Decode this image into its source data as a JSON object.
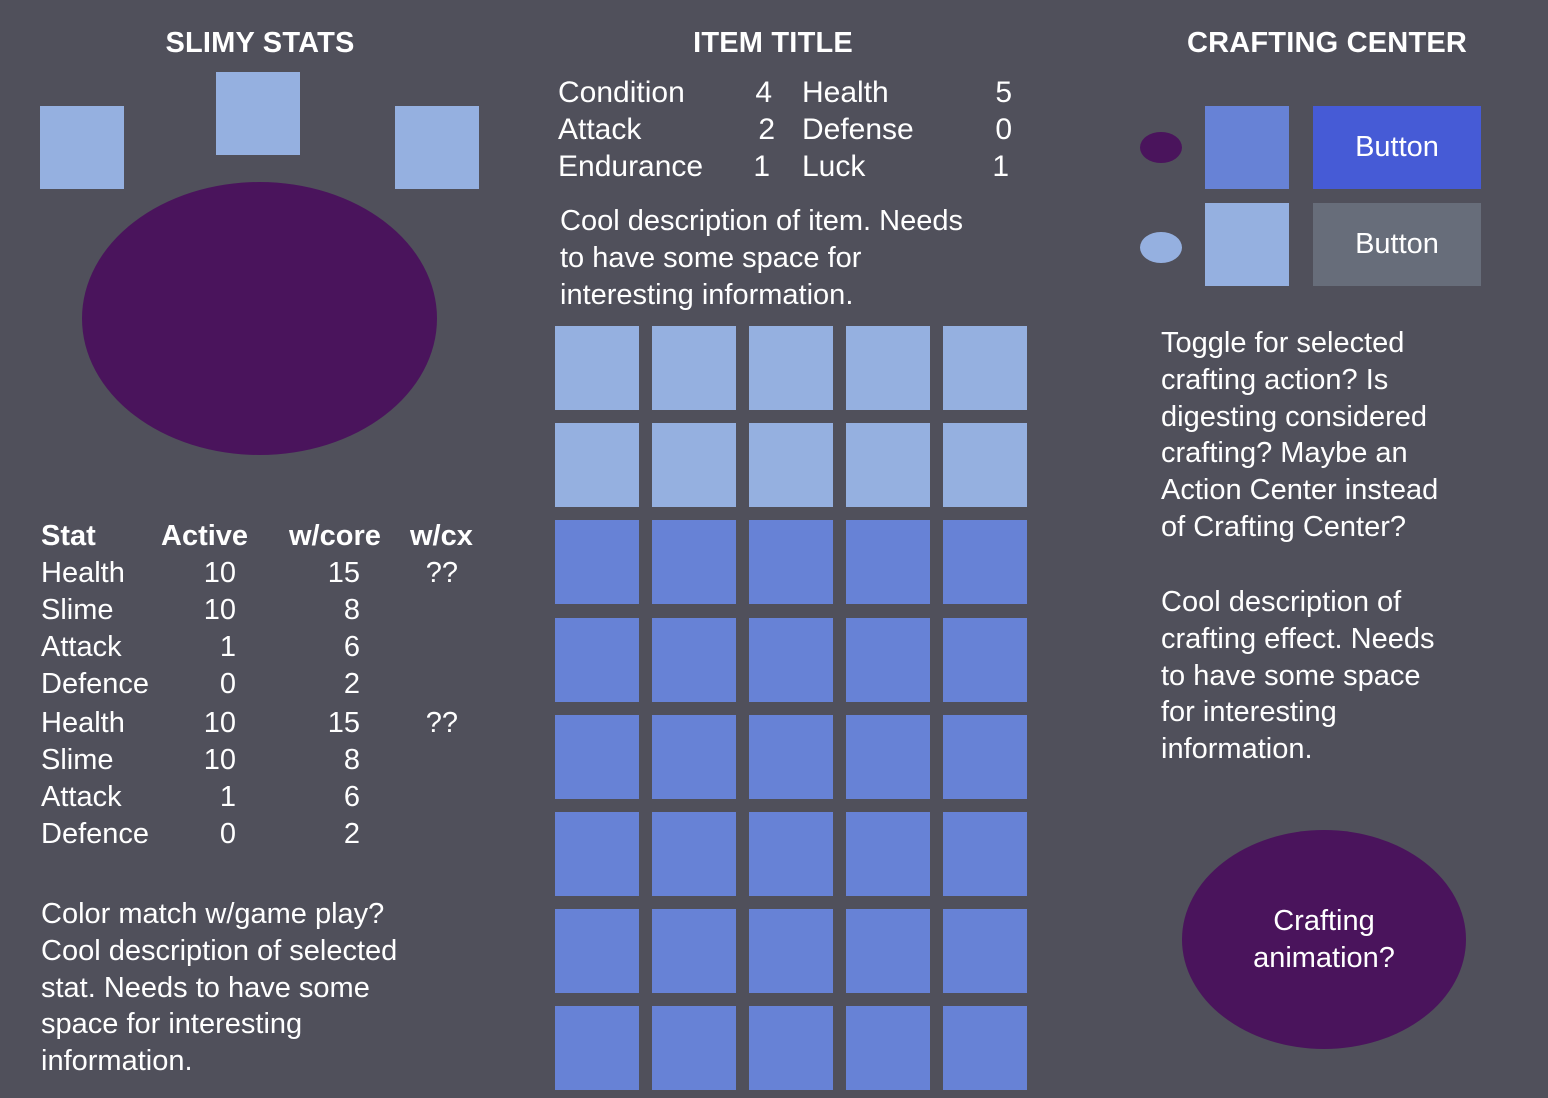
{
  "colors": {
    "background": "#50505b",
    "slot_light": "#95b0e0",
    "slot_dark": "#6782d6",
    "purple": "#4a145c",
    "button_primary": "#465bd6",
    "button_secondary": "#676d7a"
  },
  "slimy_stats": {
    "title": "SLIMY STATS",
    "table": {
      "headers": [
        "Stat",
        "Active",
        "w/core",
        "w/cx"
      ],
      "rows": [
        {
          "stat": "Health",
          "active": "10",
          "core": "15",
          "cx": "??"
        },
        {
          "stat": "Slime",
          "active": "10",
          "core": "8",
          "cx": ""
        },
        {
          "stat": "Attack",
          "active": "1",
          "core": "6",
          "cx": ""
        },
        {
          "stat": "Defence",
          "active": "0",
          "core": "2",
          "cx": ""
        },
        {
          "stat": "Health",
          "active": "10",
          "core": "15",
          "cx": "??"
        },
        {
          "stat": "Slime",
          "active": "10",
          "core": "8",
          "cx": ""
        },
        {
          "stat": "Attack",
          "active": "1",
          "core": "6",
          "cx": ""
        },
        {
          "stat": "Defence",
          "active": "0",
          "core": "2",
          "cx": ""
        }
      ]
    },
    "description": "Color match w/game play?\nCool description of selected\nstat. Needs to have some\nspace for interesting\ninformation."
  },
  "item": {
    "title": "ITEM TITLE",
    "stats": [
      {
        "name": "Condition",
        "value": "4"
      },
      {
        "name": "Health",
        "value": "5"
      },
      {
        "name": "Attack",
        "value": "2"
      },
      {
        "name": "Defense",
        "value": "0"
      },
      {
        "name": "Endurance",
        "value": "1"
      },
      {
        "name": "Luck",
        "value": "1"
      }
    ],
    "description": "Cool description of item. Needs\nto have some space for\ninteresting information."
  },
  "crafting": {
    "title": "CRAFTING CENTER",
    "button_primary": "Button",
    "button_secondary": "Button",
    "toggle_text": "Toggle for selected\ncrafting action? Is\ndigesting considered\ncrafting? Maybe an\nAction Center instead\nof Crafting Center?",
    "effect_text": "Cool description of\ncrafting effect. Needs\nto have some space\nfor interesting\ninformation.",
    "animation_label": "Crafting\nanimation?"
  }
}
